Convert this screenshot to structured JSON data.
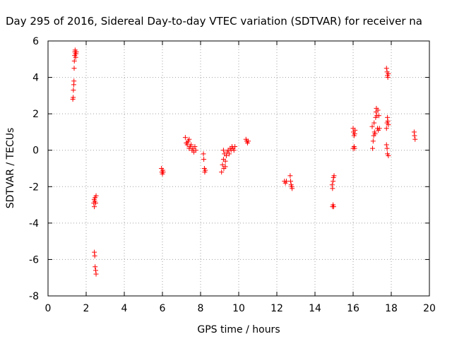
{
  "chart_data": {
    "type": "scatter",
    "title": "Day 295 of 2016, Sidereal Day-to-day VTEC variation (SDTVAR) for receiver na",
    "xlabel": "GPS time / hours",
    "ylabel": "SDTVAR / TECUs",
    "xlim": [
      0,
      20
    ],
    "ylim": [
      -8,
      6
    ],
    "xticks": [
      "0",
      "2",
      "4",
      "6",
      "8",
      "10",
      "12",
      "14",
      "16",
      "18",
      "20"
    ],
    "yticks": [
      "6",
      "4",
      "2",
      "0",
      "-2",
      "-4",
      "-6",
      "-8"
    ],
    "grid": true,
    "marker": "+",
    "color": "#ff0000",
    "series": [
      {
        "points": [
          [
            1.3,
            2.8
          ],
          [
            1.32,
            2.9
          ],
          [
            1.33,
            3.3
          ],
          [
            1.35,
            3.6
          ],
          [
            1.36,
            3.8
          ],
          [
            1.37,
            4.5
          ],
          [
            1.38,
            4.9
          ],
          [
            1.4,
            5.2
          ],
          [
            1.41,
            5.4
          ],
          [
            1.42,
            5.5
          ],
          [
            1.44,
            5.3
          ],
          [
            1.45,
            5.1
          ],
          [
            1.47,
            5.3
          ],
          [
            1.48,
            5.4
          ],
          [
            2.4,
            -2.9
          ],
          [
            2.42,
            -2.7
          ],
          [
            2.43,
            -3.1
          ],
          [
            2.45,
            -2.8
          ],
          [
            2.47,
            -2.6
          ],
          [
            2.5,
            -2.9
          ],
          [
            2.52,
            -2.5
          ],
          [
            2.43,
            -5.6
          ],
          [
            2.45,
            -5.8
          ],
          [
            2.47,
            -6.4
          ],
          [
            2.5,
            -6.6
          ],
          [
            2.52,
            -6.8
          ],
          [
            5.95,
            -1.0
          ],
          [
            5.97,
            -1.2
          ],
          [
            6.0,
            -1.3
          ],
          [
            6.02,
            -1.1
          ],
          [
            6.04,
            -1.2
          ],
          [
            7.2,
            0.7
          ],
          [
            7.25,
            0.4
          ],
          [
            7.3,
            0.3
          ],
          [
            7.35,
            0.5
          ],
          [
            7.4,
            0.6
          ],
          [
            7.45,
            0.2
          ],
          [
            7.5,
            0.3
          ],
          [
            7.55,
            0.0
          ],
          [
            7.6,
            0.1
          ],
          [
            7.65,
            -0.1
          ],
          [
            7.7,
            0.2
          ],
          [
            7.75,
            0.0
          ],
          [
            7.3,
            0.4
          ],
          [
            7.4,
            0.1
          ],
          [
            8.15,
            -0.2
          ],
          [
            8.17,
            -0.5
          ],
          [
            8.2,
            -1.0
          ],
          [
            8.22,
            -1.2
          ],
          [
            8.25,
            -1.1
          ],
          [
            9.1,
            -1.2
          ],
          [
            9.15,
            -0.8
          ],
          [
            9.2,
            -0.5
          ],
          [
            9.22,
            -1.0
          ],
          [
            9.25,
            -0.2
          ],
          [
            9.3,
            -0.6
          ],
          [
            9.35,
            -0.3
          ],
          [
            9.4,
            -0.1
          ],
          [
            9.45,
            0.0
          ],
          [
            9.5,
            -0.2
          ],
          [
            9.55,
            0.1
          ],
          [
            9.6,
            0.0
          ],
          [
            9.65,
            0.2
          ],
          [
            9.7,
            0.1
          ],
          [
            9.75,
            0.0
          ],
          [
            9.8,
            0.2
          ],
          [
            9.2,
            0.0
          ],
          [
            9.3,
            -0.9
          ],
          [
            10.38,
            0.6
          ],
          [
            10.42,
            0.5
          ],
          [
            10.46,
            0.4
          ],
          [
            10.5,
            0.5
          ],
          [
            12.4,
            -1.7
          ],
          [
            12.45,
            -1.8
          ],
          [
            12.5,
            -1.7
          ],
          [
            12.7,
            -1.4
          ],
          [
            12.72,
            -1.7
          ],
          [
            12.75,
            -1.9
          ],
          [
            12.78,
            -2.0
          ],
          [
            12.8,
            -2.1
          ],
          [
            14.9,
            -1.9
          ],
          [
            14.92,
            -2.1
          ],
          [
            14.95,
            -1.7
          ],
          [
            14.97,
            -1.5
          ],
          [
            15.0,
            -1.4
          ],
          [
            14.92,
            -3.1
          ],
          [
            14.95,
            -3.0
          ],
          [
            14.98,
            -3.1
          ],
          [
            16.0,
            1.2
          ],
          [
            16.02,
            1.0
          ],
          [
            16.05,
            0.8
          ],
          [
            16.08,
            0.9
          ],
          [
            16.1,
            1.1
          ],
          [
            16.0,
            0.1
          ],
          [
            16.05,
            0.2
          ],
          [
            16.08,
            0.1
          ],
          [
            17.0,
            1.3
          ],
          [
            17.02,
            0.1
          ],
          [
            17.05,
            0.5
          ],
          [
            17.08,
            0.8
          ],
          [
            17.1,
            1.5
          ],
          [
            17.12,
            1.0
          ],
          [
            17.15,
            0.9
          ],
          [
            17.18,
            1.8
          ],
          [
            17.2,
            2.1
          ],
          [
            17.22,
            2.3
          ],
          [
            17.25,
            1.9
          ],
          [
            17.28,
            1.2
          ],
          [
            17.3,
            2.2
          ],
          [
            17.32,
            1.1
          ],
          [
            17.35,
            1.9
          ],
          [
            17.38,
            1.2
          ],
          [
            17.75,
            4.5
          ],
          [
            17.78,
            4.3
          ],
          [
            17.8,
            4.1
          ],
          [
            17.82,
            4.0
          ],
          [
            17.85,
            4.2
          ],
          [
            17.75,
            1.2
          ],
          [
            17.78,
            1.5
          ],
          [
            17.8,
            1.8
          ],
          [
            17.82,
            1.6
          ],
          [
            17.85,
            1.4
          ],
          [
            17.75,
            0.3
          ],
          [
            17.78,
            0.1
          ],
          [
            17.8,
            -0.2
          ],
          [
            17.85,
            -0.3
          ],
          [
            19.2,
            1.0
          ],
          [
            19.22,
            0.8
          ],
          [
            19.25,
            0.6
          ]
        ]
      }
    ]
  }
}
